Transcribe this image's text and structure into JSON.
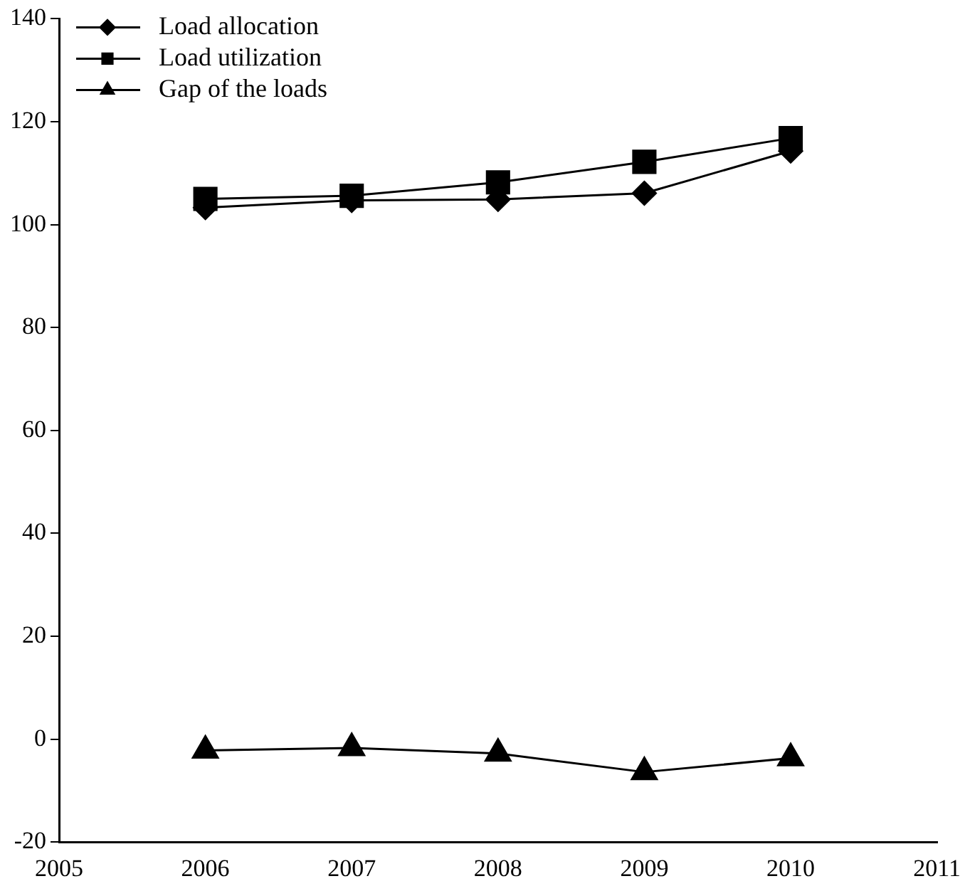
{
  "chart_data": {
    "type": "line",
    "x": [
      2006,
      2007,
      2008,
      2009,
      2010
    ],
    "xlim": [
      2005,
      2011
    ],
    "xticks": [
      2005,
      2006,
      2007,
      2008,
      2009,
      2010,
      2011
    ],
    "ylim": [
      -20,
      140
    ],
    "yticks": [
      -20,
      0,
      20,
      40,
      60,
      80,
      100,
      120,
      140
    ],
    "grid": false,
    "legend": "top left",
    "series": [
      {
        "name": "Load allocation",
        "color": "#000000",
        "marker": "diamond",
        "values": [
          103.3,
          104.7,
          104.9,
          106.1,
          114.3
        ]
      },
      {
        "name": "Load utilization",
        "color": "#000000",
        "marker": "square",
        "values": [
          105.0,
          105.6,
          108.2,
          112.2,
          116.8
        ]
      },
      {
        "name": "Gap of the loads",
        "color": "#000000",
        "marker": "triangle",
        "values": [
          -2.2,
          -1.7,
          -2.8,
          -6.4,
          -3.7
        ]
      }
    ]
  }
}
